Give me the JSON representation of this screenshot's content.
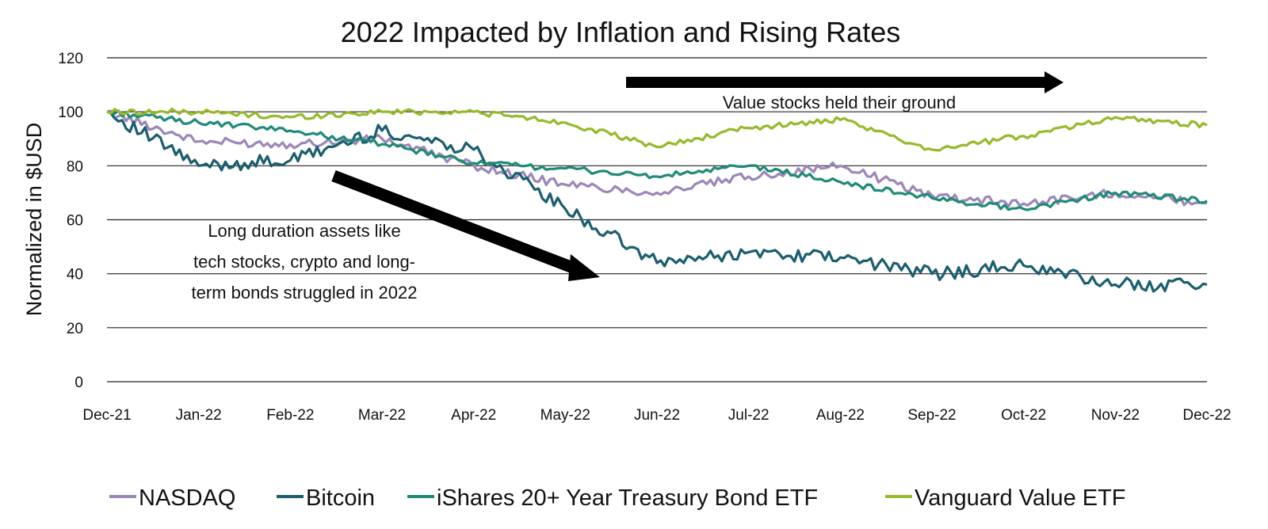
{
  "chart_data": {
    "type": "line",
    "title": "2022 Impacted by Inflation and Rising Rates",
    "ylabel": "Normalized in $USD",
    "xlabel": "",
    "ylim": [
      0,
      120
    ],
    "yticks": [
      0,
      20,
      40,
      60,
      80,
      100,
      120
    ],
    "grid": "horizontal",
    "legend_position": "bottom",
    "x": [
      "Dec-21",
      "Jan-22",
      "Feb-22",
      "Mar-22",
      "Apr-22",
      "May-22",
      "Jun-22",
      "Jul-22",
      "Aug-22",
      "Sep-22",
      "Oct-22",
      "Nov-22",
      "Dec-22"
    ],
    "series": [
      {
        "name": "NASDAQ",
        "color": "#9b87b8",
        "values": [
          100,
          89,
          88,
          90,
          80,
          73,
          70,
          76,
          80,
          69,
          66,
          70,
          66
        ]
      },
      {
        "name": "Bitcoin",
        "color": "#1c5e6e",
        "values": [
          100,
          80,
          82,
          93,
          86,
          64,
          44,
          48,
          46,
          40,
          43,
          36,
          36
        ]
      },
      {
        "name": "iShares 20+ Year Treasury Bond ETF",
        "color": "#208a78",
        "values": [
          100,
          96,
          93,
          88,
          81,
          79,
          76,
          80,
          74,
          68,
          64,
          70,
          67
        ]
      },
      {
        "name": "Vanguard Value ETF",
        "color": "#97b92c",
        "values": [
          100,
          100,
          98,
          100,
          100,
          96,
          87,
          94,
          97,
          86,
          91,
          98,
          95
        ]
      }
    ],
    "annotations": [
      {
        "text_lines": [
          "Value stocks held their ground"
        ]
      },
      {
        "text_lines": [
          "Long duration assets like",
          "tech stocks, crypto and long-",
          "term bonds struggled in 2022"
        ]
      }
    ]
  }
}
